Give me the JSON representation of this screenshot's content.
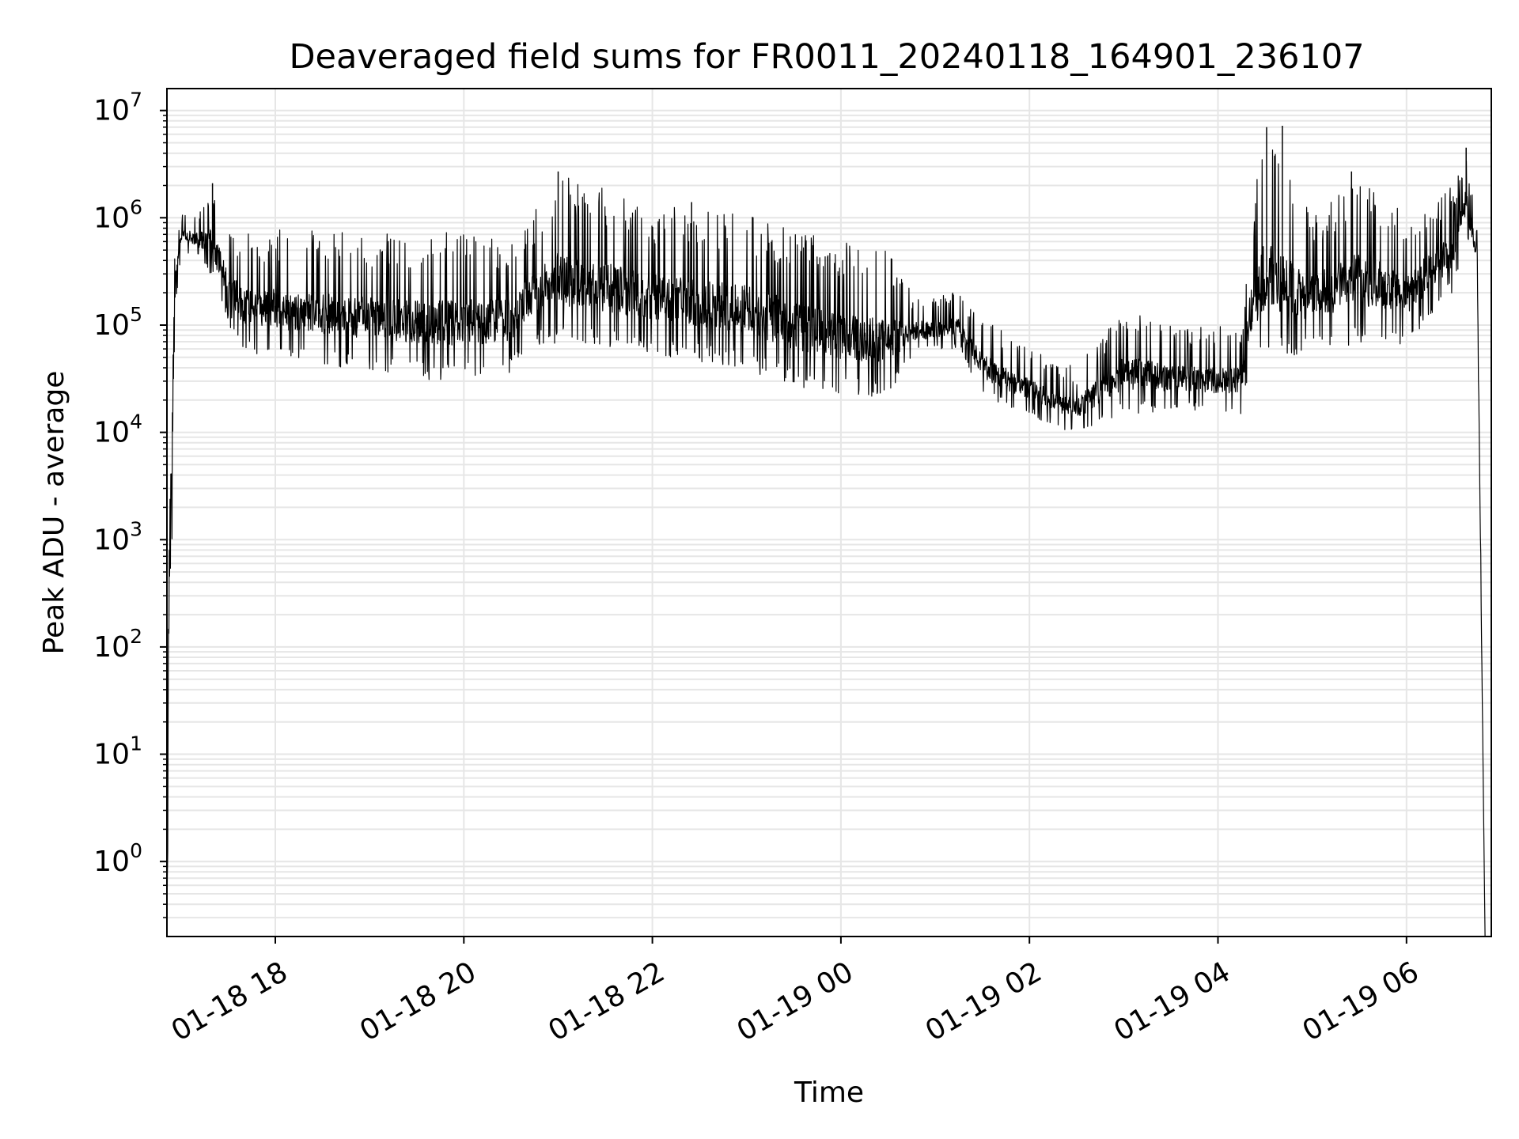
{
  "chart_data": {
    "type": "line",
    "title": "Deaveraged field sums for FR0011_20240118_164901_236107",
    "xlabel": "Time",
    "ylabel": "Peak ADU - average",
    "y_scale": "log",
    "grid": true,
    "line_color": "#000000",
    "grid_color": "#e6e6e6",
    "xlim": [
      "2024-01-18 16:51",
      "2024-01-19 06:54"
    ],
    "ylim": [
      0.2,
      16000000
    ],
    "x_ticks": [
      {
        "time": "2024-01-18 18:00",
        "label": "01-18 18"
      },
      {
        "time": "2024-01-18 20:00",
        "label": "01-18 20"
      },
      {
        "time": "2024-01-18 22:00",
        "label": "01-18 22"
      },
      {
        "time": "2024-01-19 00:00",
        "label": "01-19 00"
      },
      {
        "time": "2024-01-19 02:00",
        "label": "01-19 02"
      },
      {
        "time": "2024-01-19 04:00",
        "label": "01-19 04"
      },
      {
        "time": "2024-01-19 06:00",
        "label": "01-19 06"
      }
    ],
    "y_ticks": [
      {
        "value": 1,
        "base": "10",
        "exp": "0"
      },
      {
        "value": 10,
        "base": "10",
        "exp": "1"
      },
      {
        "value": 100,
        "base": "10",
        "exp": "2"
      },
      {
        "value": 1000,
        "base": "10",
        "exp": "3"
      },
      {
        "value": 10000,
        "base": "10",
        "exp": "4"
      },
      {
        "value": 100000,
        "base": "10",
        "exp": "5"
      },
      {
        "value": 1000000,
        "base": "10",
        "exp": "6"
      },
      {
        "value": 10000000,
        "base": "10",
        "exp": "7"
      }
    ],
    "series": [
      {
        "envelope": [
          {
            "x": "2024-01-18 16:51",
            "lo": 0.2,
            "hi": 0.2
          },
          {
            "x": "2024-01-18 16:52",
            "lo": 2,
            "hi": 150000
          },
          {
            "x": "2024-01-18 16:56",
            "lo": 100000,
            "hi": 600000
          },
          {
            "x": "2024-01-18 17:00",
            "lo": 500000,
            "hi": 1100000
          },
          {
            "x": "2024-01-18 17:12",
            "lo": 400000,
            "hi": 1200000
          },
          {
            "x": "2024-01-18 17:20",
            "lo": 250000,
            "hi": 2000000
          },
          {
            "x": "2024-01-18 17:30",
            "lo": 100000,
            "hi": 800000
          },
          {
            "x": "2024-01-18 17:40",
            "lo": 50000,
            "hi": 750000
          },
          {
            "x": "2024-01-18 18:00",
            "lo": 45000,
            "hi": 800000
          },
          {
            "x": "2024-01-18 19:00",
            "lo": 35000,
            "hi": 700000
          },
          {
            "x": "2024-01-18 19:45",
            "lo": 28000,
            "hi": 750000
          },
          {
            "x": "2024-01-18 20:30",
            "lo": 32000,
            "hi": 700000
          },
          {
            "x": "2024-01-18 20:40",
            "lo": 60000,
            "hi": 900000
          },
          {
            "x": "2024-01-18 21:00",
            "lo": 60000,
            "hi": 2700000
          },
          {
            "x": "2024-01-18 22:00",
            "lo": 50000,
            "hi": 1300000
          },
          {
            "x": "2024-01-18 23:00",
            "lo": 35000,
            "hi": 1100000
          },
          {
            "x": "2024-01-18 23:30",
            "lo": 25000,
            "hi": 800000
          },
          {
            "x": "2024-01-19 00:00",
            "lo": 20000,
            "hi": 600000
          },
          {
            "x": "2024-01-19 00:30",
            "lo": 20000,
            "hi": 500000
          },
          {
            "x": "2024-01-19 00:45",
            "lo": 50000,
            "hi": 200000
          },
          {
            "x": "2024-01-19 01:15",
            "lo": 60000,
            "hi": 200000
          },
          {
            "x": "2024-01-19 01:30",
            "lo": 20000,
            "hi": 120000
          },
          {
            "x": "2024-01-19 02:00",
            "lo": 14000,
            "hi": 60000
          },
          {
            "x": "2024-01-19 02:30",
            "lo": 9000,
            "hi": 40000
          },
          {
            "x": "2024-01-19 03:00",
            "lo": 14000,
            "hi": 150000
          },
          {
            "x": "2024-01-19 03:30",
            "lo": 15000,
            "hi": 100000
          },
          {
            "x": "2024-01-19 04:15",
            "lo": 14000,
            "hi": 100000
          },
          {
            "x": "2024-01-19 04:20",
            "lo": 30000,
            "hi": 800000
          },
          {
            "x": "2024-01-19 04:30",
            "lo": 40000,
            "hi": 7000000
          },
          {
            "x": "2024-01-19 05:00",
            "lo": 50000,
            "hi": 1200000
          },
          {
            "x": "2024-01-19 05:30",
            "lo": 60000,
            "hi": 2700000
          },
          {
            "x": "2024-01-19 06:00",
            "lo": 60000,
            "hi": 1200000
          },
          {
            "x": "2024-01-19 06:30",
            "lo": 200000,
            "hi": 2000000
          },
          {
            "x": "2024-01-19 06:38",
            "lo": 700000,
            "hi": 4500000
          },
          {
            "x": "2024-01-19 06:45",
            "lo": 300000,
            "hi": 800000
          },
          {
            "x": "2024-01-19 06:50",
            "lo": 0.2,
            "hi": 0.2
          }
        ],
        "spikes": [
          {
            "x": "2024-01-18 17:20",
            "value": 2100000
          },
          {
            "x": "2024-01-18 21:00",
            "value": 2700000
          },
          {
            "x": "2024-01-18 22:25",
            "value": 1400000
          },
          {
            "x": "2024-01-19 04:31",
            "value": 7000000
          },
          {
            "x": "2024-01-19 04:41",
            "value": 7200000
          },
          {
            "x": "2024-01-19 05:25",
            "value": 2700000
          },
          {
            "x": "2024-01-19 06:38",
            "value": 4500000
          }
        ]
      }
    ]
  }
}
